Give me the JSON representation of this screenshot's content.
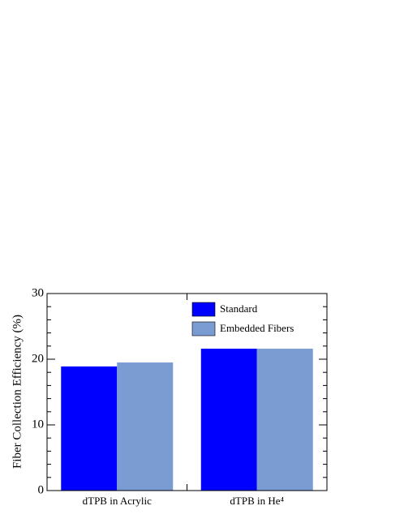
{
  "chart_data": {
    "type": "bar",
    "ylabel": "Fiber Collection Efficiency (%)",
    "categories": [
      "dTPB in Acrylic",
      "dTPB in He⁴"
    ],
    "series": [
      {
        "name": "Standard",
        "color": "#0000ff",
        "values": [
          18.9,
          21.6
        ]
      },
      {
        "name": "Embedded Fibers",
        "color": "#7b9bd3",
        "values": [
          19.5,
          21.6
        ]
      }
    ],
    "ylim": [
      0,
      30
    ],
    "yticks": [
      0,
      10,
      20,
      30
    ],
    "yminorticks": [
      2,
      4,
      6,
      8,
      12,
      14,
      16,
      18,
      22,
      24,
      26,
      28
    ],
    "legend": "upper right"
  }
}
